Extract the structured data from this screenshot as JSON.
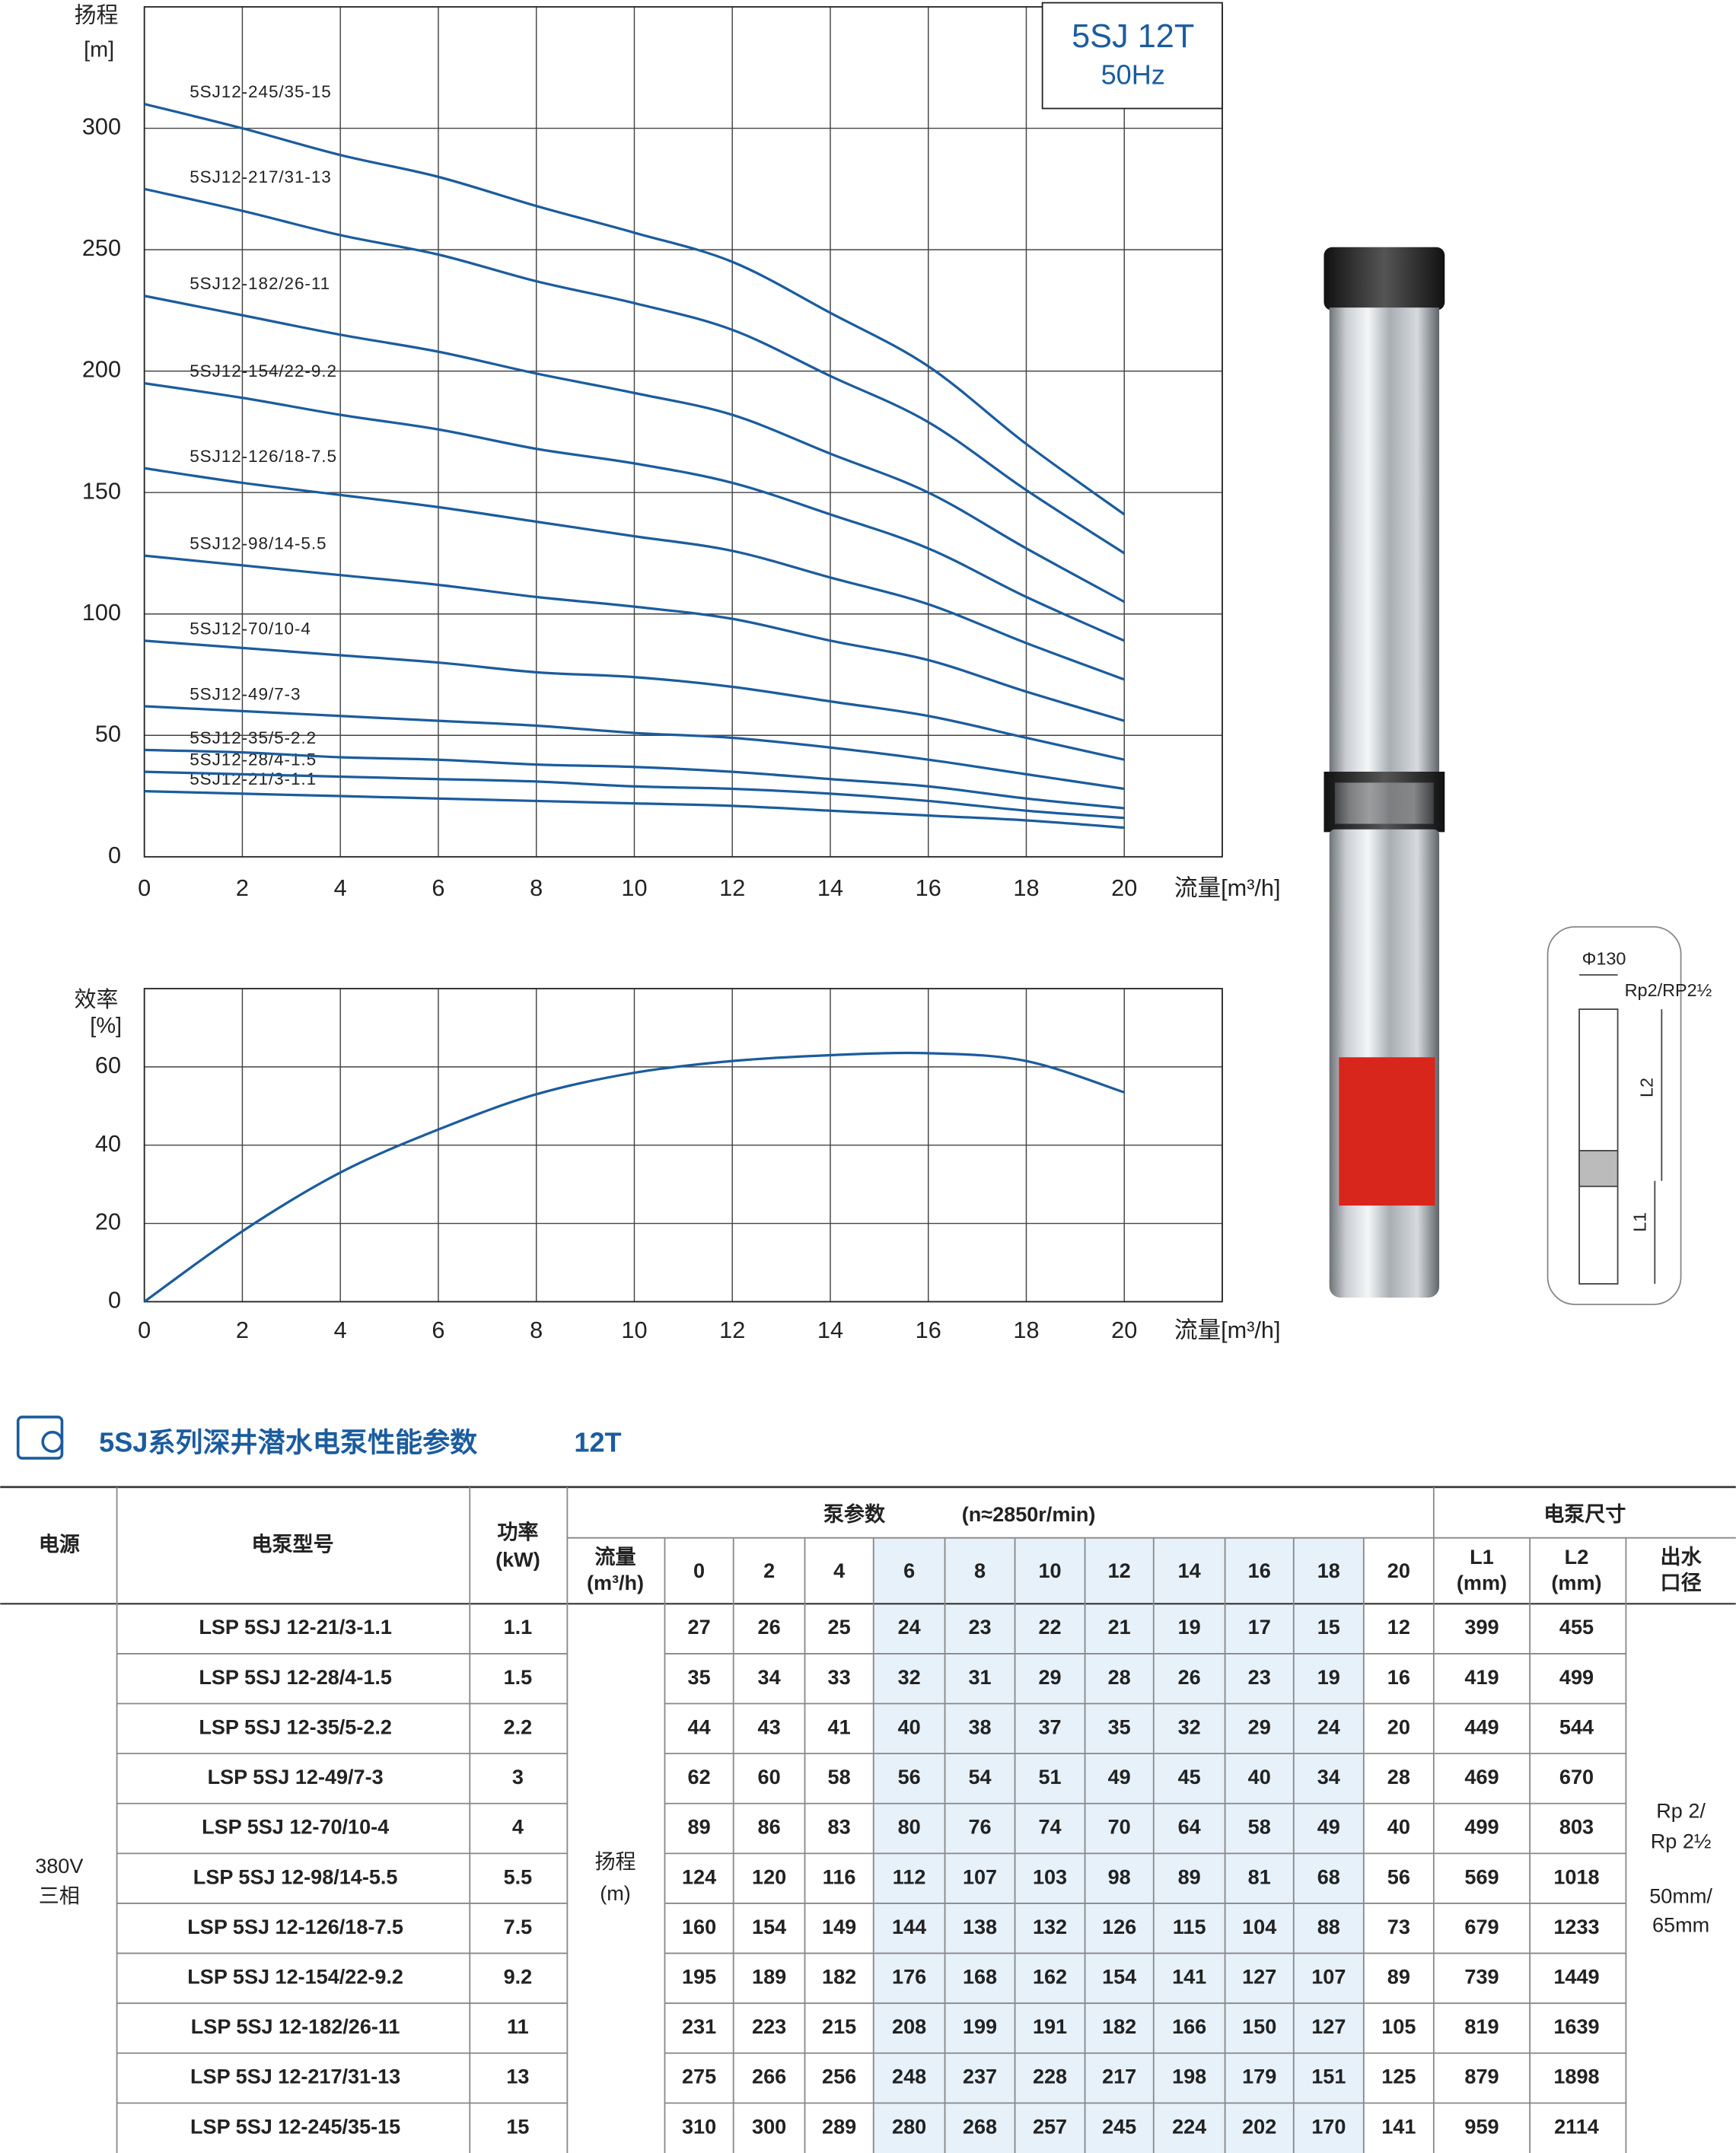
{
  "chart_data": [
    {
      "type": "line",
      "title": "5SJ 12T",
      "subtitle": "50Hz",
      "y_label": [
        "扬程",
        "[m]"
      ],
      "x_label": "流量[m³/h]",
      "x": [
        0,
        2,
        4,
        6,
        8,
        10,
        12,
        14,
        16,
        18,
        20
      ],
      "xlim": [
        0,
        22
      ],
      "ylim": [
        0,
        350
      ],
      "xticks": [
        0,
        2,
        4,
        6,
        8,
        10,
        12,
        14,
        16,
        18,
        20
      ],
      "yticks": [
        0,
        50,
        100,
        150,
        200,
        250,
        300
      ],
      "grid": true,
      "series": [
        {
          "name": "5SJ12-21/3-1.1",
          "color": "#1b5c9e",
          "values": [
            27,
            26,
            25,
            24,
            23,
            22,
            21,
            19,
            17,
            15,
            12
          ]
        },
        {
          "name": "5SJ12-28/4-1.5",
          "color": "#1b5c9e",
          "values": [
            35,
            34,
            33,
            32,
            31,
            29,
            28,
            26,
            23,
            19,
            16
          ]
        },
        {
          "name": "5SJ12-35/5-2.2",
          "color": "#1b5c9e",
          "values": [
            44,
            43,
            41,
            40,
            38,
            37,
            35,
            32,
            29,
            24,
            20
          ]
        },
        {
          "name": "5SJ12-49/7-3",
          "color": "#1b5c9e",
          "values": [
            62,
            60,
            58,
            56,
            54,
            51,
            49,
            45,
            40,
            34,
            28
          ]
        },
        {
          "name": "5SJ12-70/10-4",
          "color": "#1b5c9e",
          "values": [
            89,
            86,
            83,
            80,
            76,
            74,
            70,
            64,
            58,
            49,
            40
          ]
        },
        {
          "name": "5SJ12-98/14-5.5",
          "color": "#1b5c9e",
          "values": [
            124,
            120,
            116,
            112,
            107,
            103,
            98,
            89,
            81,
            68,
            56
          ]
        },
        {
          "name": "5SJ12-126/18-7.5",
          "color": "#1b5c9e",
          "values": [
            160,
            154,
            149,
            144,
            138,
            132,
            126,
            115,
            104,
            88,
            73
          ]
        },
        {
          "name": "5SJ12-154/22-9.2",
          "color": "#1b5c9e",
          "values": [
            195,
            189,
            182,
            176,
            168,
            162,
            154,
            141,
            127,
            107,
            89
          ]
        },
        {
          "name": "5SJ12-182/26-11",
          "color": "#1b5c9e",
          "values": [
            231,
            223,
            215,
            208,
            199,
            191,
            182,
            166,
            150,
            127,
            105
          ]
        },
        {
          "name": "5SJ12-217/31-13",
          "color": "#1b5c9e",
          "values": [
            275,
            266,
            256,
            248,
            237,
            228,
            217,
            198,
            179,
            151,
            125
          ]
        },
        {
          "name": "5SJ12-245/35-15",
          "color": "#1b5c9e",
          "values": [
            310,
            300,
            289,
            280,
            268,
            257,
            245,
            224,
            202,
            170,
            141
          ]
        }
      ]
    },
    {
      "type": "line",
      "y_label": [
        "效率",
        "[%]"
      ],
      "x_label": "流量[m³/h]",
      "x": [
        0,
        2,
        4,
        6,
        8,
        10,
        12,
        14,
        16,
        18,
        20
      ],
      "xlim": [
        0,
        22
      ],
      "ylim": [
        0,
        80
      ],
      "xticks": [
        0,
        2,
        4,
        6,
        8,
        10,
        12,
        14,
        16,
        18,
        20
      ],
      "yticks": [
        0,
        20,
        40,
        60
      ],
      "grid": true,
      "color": "#1b5c9e",
      "values": [
        0,
        18,
        33,
        44,
        53,
        58.5,
        61.5,
        63,
        63.5,
        61.5,
        53.5
      ]
    }
  ],
  "diagram": {
    "diameter": "Φ130",
    "outlet": "Rp2/RP2½",
    "l2": "L2",
    "l1": "L1"
  },
  "header": {
    "title": "5SJ系列深井潜水电泵性能参数",
    "subtitle": "12T"
  },
  "table": {
    "headers": {
      "power_source": "电源",
      "model": "电泵型号",
      "power": [
        "功率",
        "(kW)"
      ],
      "pump_params": "泵参数",
      "speed": "(n≈2850r/min)",
      "dimensions": "电泵尺寸",
      "flow": [
        "流量",
        "(m³/h)"
      ],
      "l1": [
        "L1",
        "(mm)"
      ],
      "l2": [
        "L2",
        "(mm)"
      ],
      "outlet": [
        "出水",
        "口径"
      ]
    },
    "power_source": [
      "380V",
      "三相"
    ],
    "head": [
      "扬程",
      "(m)"
    ],
    "outlet": [
      "Rp 2/",
      "Rp 2½",
      "50mm/",
      "65mm"
    ],
    "rows": [
      {
        "model": "LSP 5SJ 12-21/3-1.1",
        "power": 1.1,
        "l1": 399,
        "l2": 455
      },
      {
        "model": "LSP 5SJ 12-28/4-1.5",
        "power": 1.5,
        "l1": 419,
        "l2": 499
      },
      {
        "model": "LSP 5SJ 12-35/5-2.2",
        "power": 2.2,
        "l1": 449,
        "l2": 544
      },
      {
        "model": "LSP 5SJ 12-49/7-3",
        "power": 3,
        "l1": 469,
        "l2": 670
      },
      {
        "model": "LSP 5SJ 12-70/10-4",
        "power": 4,
        "l1": 499,
        "l2": 803
      },
      {
        "model": "LSP 5SJ 12-98/14-5.5",
        "power": 5.5,
        "l1": 569,
        "l2": 1018
      },
      {
        "model": "LSP 5SJ 12-126/18-7.5",
        "power": 7.5,
        "l1": 679,
        "l2": 1233
      },
      {
        "model": "LSP 5SJ 12-154/22-9.2",
        "power": 9.2,
        "l1": 739,
        "l2": 1449
      },
      {
        "model": "LSP 5SJ 12-182/26-11",
        "power": 11,
        "l1": 819,
        "l2": 1639
      },
      {
        "model": "LSP 5SJ 12-217/31-13",
        "power": 13,
        "l1": 879,
        "l2": 1898
      },
      {
        "model": "LSP 5SJ 12-245/35-15",
        "power": 15,
        "l1": 959,
        "l2": 2114
      }
    ]
  }
}
